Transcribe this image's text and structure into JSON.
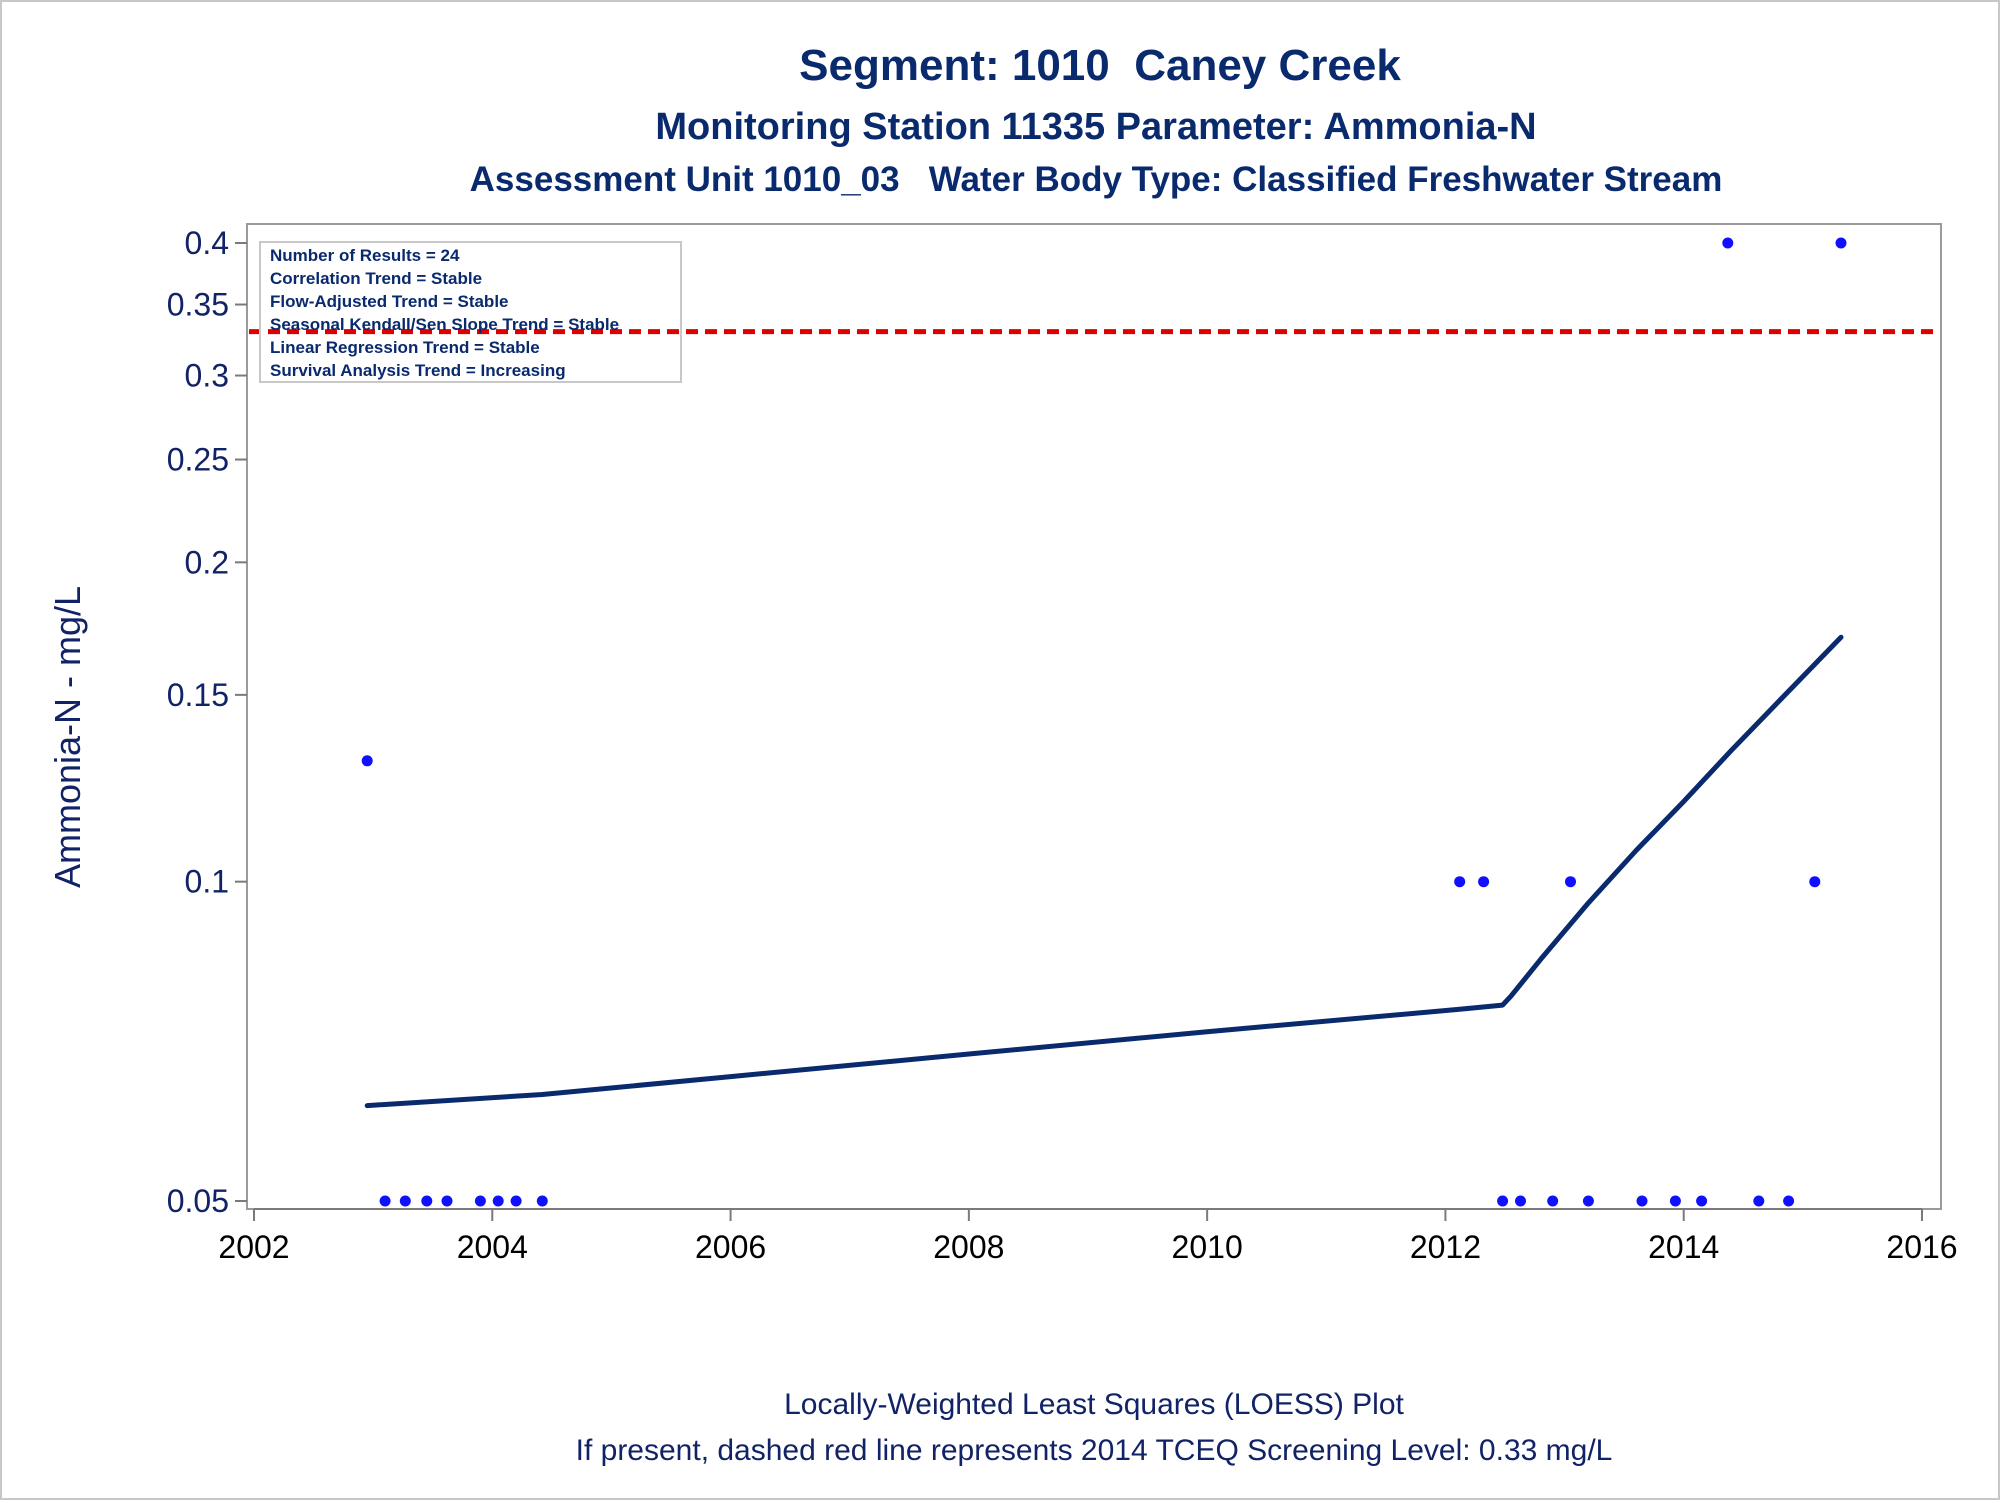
{
  "chart_data": {
    "type": "scatter",
    "title": "Segment: 1010  Caney Creek",
    "subtitle": "Monitoring Station 11335 Parameter: Ammonia-N",
    "subtitle2": "Assessment Unit 1010_03   Water Body Type: Classified Freshwater Stream",
    "ylabel": "Ammonia-N - mg/L",
    "yscale": "log",
    "ylim": [
      0.048,
      0.42
    ],
    "yticks": [
      "0.05",
      "0.1",
      "0.15",
      "0.2",
      "0.25",
      "0.3",
      "0.35",
      "0.4"
    ],
    "ytick_values": [
      0.05,
      0.1,
      0.15,
      0.2,
      0.25,
      0.3,
      0.35,
      0.4
    ],
    "xlim": [
      2002,
      2016
    ],
    "xticks": [
      "2002",
      "2004",
      "2006",
      "2008",
      "2010",
      "2012",
      "2014",
      "2016"
    ],
    "xtick_values": [
      2002,
      2004,
      2006,
      2008,
      2010,
      2012,
      2014,
      2016
    ],
    "stats_box": [
      "Number of Results = 24",
      "Correlation Trend = Stable",
      "Flow-Adjusted Trend = Stable",
      "Seasonal Kendall/Sen Slope Trend = Stable",
      "Linear Regression Trend = Stable",
      "Survival Analysis Trend = Increasing"
    ],
    "screening_level": 0.33,
    "points": [
      [
        2002.95,
        0.13
      ],
      [
        2003.1,
        0.05
      ],
      [
        2003.27,
        0.05
      ],
      [
        2003.45,
        0.05
      ],
      [
        2003.62,
        0.05
      ],
      [
        2003.9,
        0.05
      ],
      [
        2004.05,
        0.05
      ],
      [
        2004.2,
        0.05
      ],
      [
        2004.42,
        0.05
      ],
      [
        2012.12,
        0.1
      ],
      [
        2012.32,
        0.1
      ],
      [
        2012.48,
        0.05
      ],
      [
        2012.63,
        0.05
      ],
      [
        2012.9,
        0.05
      ],
      [
        2013.05,
        0.1
      ],
      [
        2013.2,
        0.05
      ],
      [
        2013.65,
        0.05
      ],
      [
        2013.93,
        0.05
      ],
      [
        2014.15,
        0.05
      ],
      [
        2014.37,
        0.4
      ],
      [
        2014.63,
        0.05
      ],
      [
        2014.88,
        0.05
      ],
      [
        2015.1,
        0.1
      ],
      [
        2015.32,
        0.4
      ]
    ],
    "loess": [
      [
        2002.95,
        0.0615
      ],
      [
        2004.42,
        0.063
      ],
      [
        2006,
        0.0655
      ],
      [
        2008,
        0.0688
      ],
      [
        2010,
        0.0722
      ],
      [
        2012.12,
        0.0758
      ],
      [
        2012.48,
        0.0765
      ],
      [
        2012.55,
        0.078
      ],
      [
        2012.8,
        0.0845
      ],
      [
        2013.2,
        0.0955
      ],
      [
        2013.6,
        0.107
      ],
      [
        2014.0,
        0.119
      ],
      [
        2014.4,
        0.133
      ],
      [
        2014.8,
        0.148
      ],
      [
        2015.32,
        0.17
      ]
    ]
  },
  "colors": {
    "points": "#1010ff",
    "loess": "#0a2a6e",
    "screening_line": "#dd0000",
    "text": "#0a2a6e"
  },
  "footer": {
    "line1": "Locally-Weighted Least Squares (LOESS) Plot",
    "line2": "If present, dashed red line represents 2014 TCEQ Screening Level: 0.33 mg/L"
  }
}
